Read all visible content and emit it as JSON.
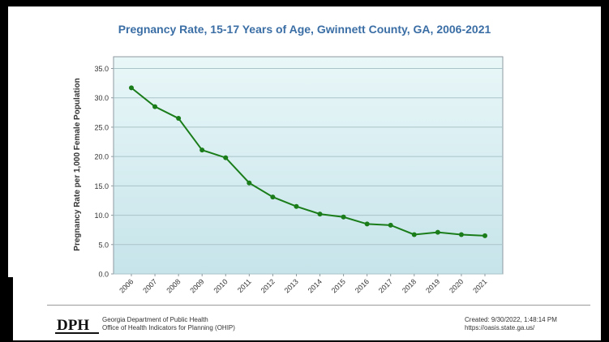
{
  "chart_data": {
    "type": "line",
    "title": "Pregnancy Rate, 15-17 Years of Age, Gwinnett County, GA, 2006-2021",
    "xlabel": "",
    "ylabel": "Pregnancy Rate per 1,000 Female Population",
    "categories": [
      "2006",
      "2007",
      "2008",
      "2009",
      "2010",
      "2011",
      "2012",
      "2013",
      "2014",
      "2015",
      "2016",
      "2017",
      "2018",
      "2019",
      "2020",
      "2021"
    ],
    "values": [
      31.7,
      28.5,
      26.5,
      21.1,
      19.8,
      15.5,
      13.1,
      11.5,
      10.2,
      9.7,
      8.5,
      8.3,
      6.7,
      7.1,
      6.7,
      6.5
    ],
    "yticks": [
      "0.0",
      "5.0",
      "10.0",
      "15.0",
      "20.0",
      "25.0",
      "30.0",
      "35.0"
    ],
    "ylim": [
      0,
      37
    ],
    "grid": true,
    "line_color": "#1a7d1a"
  },
  "footer": {
    "logo_text": "DPH",
    "org_line1": "Georgia Department of Public Health",
    "org_line2": "Office of Health Indicators for Planning (OHIP)",
    "created_line1": "Created: 9/30/2022, 1:48:14 PM",
    "created_line2": "https://oasis.state.ga.us/"
  }
}
